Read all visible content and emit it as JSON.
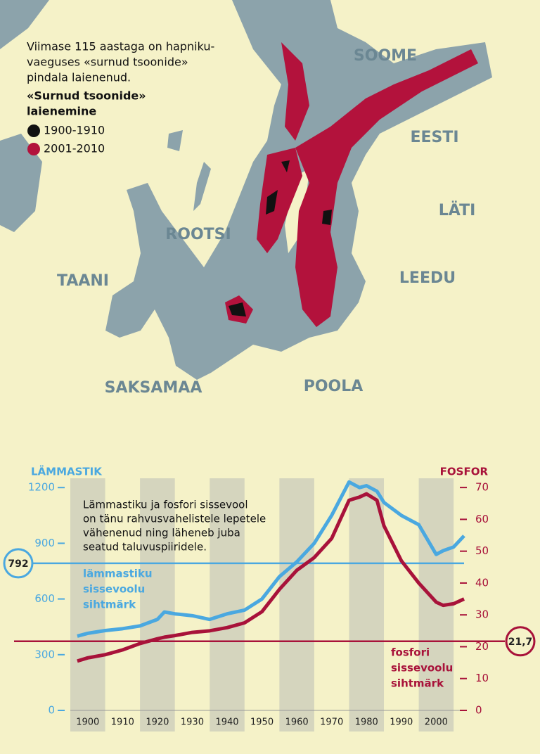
{
  "map": {
    "intro": [
      "Viimase 115 aastaga on hapniku-",
      "vaeguses «surnud tsoonide»",
      "pindala laienenud."
    ],
    "legend_title": [
      "«Surnud tsoonide»",
      "laienemine"
    ],
    "legend": [
      {
        "name": "1900-1910",
        "color": "#111111"
      },
      {
        "name": "2001-2010",
        "color": "#b3123c"
      }
    ],
    "countries": [
      "SOOME",
      "EESTI",
      "LÄTI",
      "LEEDU",
      "ROOTSI",
      "TAANI",
      "SAKSAMAA",
      "POOLA"
    ]
  },
  "chart_data": {
    "type": "line",
    "annotation": [
      "Lämmastiku ja fosfori sissevool",
      "on tänu rahvusvahelistele lepetele",
      "vähenenud ning läheneb juba",
      "seatud taluvuspiiridele."
    ],
    "x": [
      1897,
      1900,
      1905,
      1910,
      1915,
      1920,
      1922,
      1925,
      1930,
      1935,
      1940,
      1945,
      1950,
      1955,
      1960,
      1965,
      1970,
      1975,
      1978,
      1980,
      1983,
      1985,
      1990,
      1995,
      2000,
      2002,
      2005,
      2008
    ],
    "xlim": [
      1895,
      2008
    ],
    "xticks": [
      1900,
      1910,
      1920,
      1930,
      1940,
      1950,
      1960,
      1970,
      1980,
      1990,
      2000
    ],
    "ylabel": "LÄMMASTIK",
    "y2label": "FOSFOR",
    "ylim": [
      0,
      1250
    ],
    "yticks": [
      0,
      300,
      600,
      900,
      1200
    ],
    "y2lim": [
      0,
      72.9
    ],
    "y2ticks": [
      0,
      10,
      20,
      30,
      40,
      50,
      60,
      70
    ],
    "series": [
      {
        "name": "LÄMMASTIK",
        "color": "#4aa8e0",
        "values": [
          400,
          415,
          430,
          440,
          455,
          490,
          530,
          520,
          510,
          490,
          520,
          540,
          600,
          720,
          800,
          900,
          1050,
          1230,
          1200,
          1210,
          1180,
          1120,
          1050,
          1000,
          840,
          860,
          880,
          940
        ]
      },
      {
        "name": "FOSFOR",
        "color": "#a8123a",
        "axis": "y2",
        "values": [
          15.5,
          16.5,
          17.5,
          19,
          21,
          22.5,
          23,
          23.5,
          24.5,
          25,
          26,
          27.5,
          31,
          38,
          44,
          48,
          54,
          66,
          67,
          68,
          66,
          58,
          47,
          40,
          34,
          33,
          33.5,
          35
        ]
      }
    ],
    "targets": [
      {
        "value": 792,
        "value_label": "792",
        "axis": "y",
        "color": "#4aa8e0",
        "text": [
          "lämmastiku",
          "sissevoolu",
          "sihtmärk"
        ]
      },
      {
        "value": 21.7,
        "value_label": "21,7",
        "axis": "y2",
        "color": "#a8123a",
        "text": [
          "fosfori",
          "sissevoolu",
          "sihtmärk"
        ]
      }
    ]
  }
}
